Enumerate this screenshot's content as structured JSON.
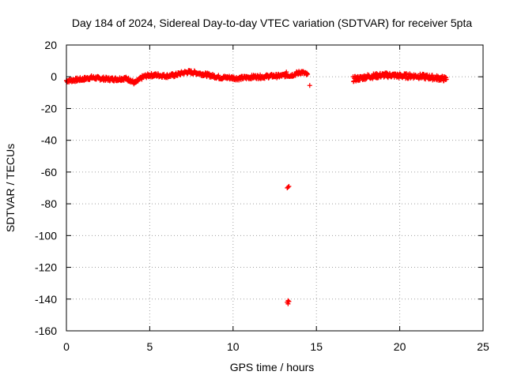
{
  "chart_data": {
    "type": "scatter",
    "title": "Day 184 of 2024, Sidereal Day-to-day VTEC variation (SDTVAR) for receiver 5pta",
    "xlabel": "GPS time / hours",
    "ylabel": "SDTVAR / TECUs",
    "xlim": [
      0,
      25
    ],
    "ylim": [
      -160,
      20
    ],
    "xticks": [
      0,
      5,
      10,
      15,
      20,
      25
    ],
    "yticks": [
      20,
      0,
      -20,
      -40,
      -60,
      -80,
      -100,
      -120,
      -140,
      -160
    ],
    "grid": true,
    "marker": "+",
    "series_color": "#ff0000",
    "series": [
      {
        "name": "SDTVAR",
        "curve_segments": [
          {
            "x": [
              0.0,
              0.5,
              1.0,
              1.5,
              2.0,
              2.5,
              3.0,
              3.5,
              3.8,
              4.1,
              4.3,
              4.6,
              5.0,
              5.5,
              6.0,
              6.5,
              7.0,
              7.3,
              7.8,
              8.3,
              8.8,
              9.3,
              9.8,
              10.3,
              10.8,
              11.3,
              11.8,
              12.3,
              12.8,
              13.1,
              13.5,
              13.8,
              14.1,
              14.5
            ],
            "y": [
              -2.5,
              -2,
              -1.5,
              -0.5,
              -1,
              -1.5,
              -1.5,
              -1,
              -2,
              -4,
              -2.5,
              0,
              1,
              1,
              0.5,
              1,
              2.5,
              3,
              2.5,
              1.5,
              0.5,
              -0.5,
              -0.5,
              -1,
              -0.5,
              0,
              0,
              0.5,
              0.5,
              1,
              1,
              2,
              3,
              1
            ],
            "spread": 1.2
          },
          {
            "x": [
              17.2,
              17.6,
              18.0,
              18.5,
              19.0,
              19.5,
              20.0,
              20.5,
              21.0,
              21.5,
              22.0,
              22.5,
              22.8
            ],
            "y": [
              -1.5,
              -1,
              0,
              0.5,
              1,
              1,
              0.5,
              0.5,
              0.5,
              0,
              -0.5,
              -1,
              -1.5
            ],
            "spread": 1.6
          }
        ],
        "outliers": [
          {
            "x": 13.3,
            "y": -69.5
          },
          {
            "x": 13.25,
            "y": -70
          },
          {
            "x": 13.35,
            "y": -69
          },
          {
            "x": 13.3,
            "y": -141
          },
          {
            "x": 13.25,
            "y": -142
          },
          {
            "x": 13.35,
            "y": -141.5
          },
          {
            "x": 13.3,
            "y": -143
          },
          {
            "x": 14.6,
            "y": -5.5
          },
          {
            "x": 13.2,
            "y": 3
          }
        ]
      }
    ]
  }
}
